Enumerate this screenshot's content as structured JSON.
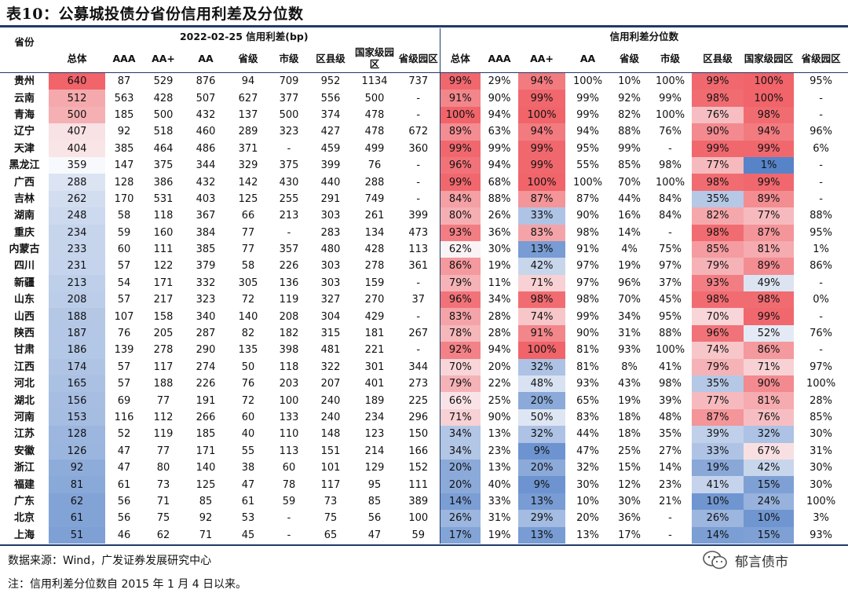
{
  "title": "表10：公募城投债分省份信用利差及分位数",
  "header": {
    "province_label": "省份",
    "group_spread": "2022-02-25 信用利差(bp)",
    "group_pct": "信用利差分位数",
    "cols": [
      "总体",
      "AAA",
      "AA+",
      "AA",
      "省级",
      "市级",
      "区县级",
      "国家级园区",
      "省级园区"
    ]
  },
  "rows": [
    {
      "p": "贵州",
      "s": [
        "640",
        "87",
        "529",
        "876",
        "94",
        "709",
        "952",
        "1134",
        "737"
      ],
      "q": [
        "99%",
        "29%",
        "94%",
        "100%",
        "10%",
        "100%",
        "99%",
        "100%",
        "95%"
      ]
    },
    {
      "p": "云南",
      "s": [
        "512",
        "563",
        "428",
        "507",
        "627",
        "377",
        "556",
        "500",
        "-"
      ],
      "q": [
        "91%",
        "90%",
        "99%",
        "99%",
        "92%",
        "99%",
        "98%",
        "100%",
        "-"
      ]
    },
    {
      "p": "青海",
      "s": [
        "500",
        "185",
        "500",
        "432",
        "137",
        "500",
        "374",
        "478",
        "-"
      ],
      "q": [
        "100%",
        "94%",
        "100%",
        "99%",
        "82%",
        "100%",
        "76%",
        "98%",
        "-"
      ]
    },
    {
      "p": "辽宁",
      "s": [
        "407",
        "92",
        "518",
        "460",
        "289",
        "323",
        "427",
        "478",
        "672"
      ],
      "q": [
        "89%",
        "63%",
        "94%",
        "94%",
        "88%",
        "76%",
        "90%",
        "94%",
        "96%"
      ]
    },
    {
      "p": "天津",
      "s": [
        "404",
        "385",
        "464",
        "486",
        "371",
        "-",
        "459",
        "499",
        "360"
      ],
      "q": [
        "99%",
        "99%",
        "99%",
        "95%",
        "99%",
        "-",
        "99%",
        "99%",
        "6%"
      ]
    },
    {
      "p": "黑龙江",
      "s": [
        "359",
        "147",
        "375",
        "344",
        "329",
        "375",
        "399",
        "76",
        "-"
      ],
      "q": [
        "96%",
        "94%",
        "99%",
        "55%",
        "85%",
        "98%",
        "77%",
        "1%",
        "-"
      ]
    },
    {
      "p": "广西",
      "s": [
        "288",
        "128",
        "386",
        "432",
        "142",
        "430",
        "440",
        "288",
        "-"
      ],
      "q": [
        "99%",
        "68%",
        "100%",
        "100%",
        "70%",
        "100%",
        "98%",
        "99%",
        "-"
      ]
    },
    {
      "p": "吉林",
      "s": [
        "262",
        "170",
        "531",
        "403",
        "125",
        "255",
        "291",
        "749",
        "-"
      ],
      "q": [
        "84%",
        "88%",
        "87%",
        "87%",
        "44%",
        "84%",
        "35%",
        "89%",
        "-"
      ]
    },
    {
      "p": "湖南",
      "s": [
        "248",
        "58",
        "118",
        "367",
        "66",
        "213",
        "303",
        "261",
        "399"
      ],
      "q": [
        "80%",
        "26%",
        "33%",
        "90%",
        "16%",
        "84%",
        "82%",
        "77%",
        "88%"
      ]
    },
    {
      "p": "重庆",
      "s": [
        "234",
        "59",
        "160",
        "384",
        "77",
        "-",
        "283",
        "134",
        "473"
      ],
      "q": [
        "93%",
        "36%",
        "83%",
        "98%",
        "14%",
        "-",
        "98%",
        "87%",
        "95%"
      ]
    },
    {
      "p": "内蒙古",
      "s": [
        "233",
        "60",
        "111",
        "385",
        "77",
        "357",
        "480",
        "428",
        "113"
      ],
      "q": [
        "62%",
        "30%",
        "13%",
        "91%",
        "4%",
        "75%",
        "85%",
        "81%",
        "1%"
      ]
    },
    {
      "p": "四川",
      "s": [
        "231",
        "57",
        "122",
        "379",
        "58",
        "226",
        "303",
        "278",
        "361"
      ],
      "q": [
        "86%",
        "19%",
        "42%",
        "97%",
        "19%",
        "97%",
        "79%",
        "89%",
        "86%"
      ]
    },
    {
      "p": "新疆",
      "s": [
        "213",
        "54",
        "171",
        "332",
        "305",
        "136",
        "303",
        "159",
        "-"
      ],
      "q": [
        "79%",
        "11%",
        "71%",
        "97%",
        "96%",
        "37%",
        "93%",
        "49%",
        "-"
      ]
    },
    {
      "p": "山东",
      "s": [
        "208",
        "57",
        "217",
        "323",
        "72",
        "119",
        "327",
        "270",
        "37"
      ],
      "q": [
        "96%",
        "34%",
        "98%",
        "98%",
        "70%",
        "45%",
        "98%",
        "98%",
        "0%"
      ]
    },
    {
      "p": "山西",
      "s": [
        "188",
        "107",
        "158",
        "340",
        "140",
        "208",
        "304",
        "429",
        "-"
      ],
      "q": [
        "83%",
        "28%",
        "74%",
        "99%",
        "34%",
        "95%",
        "70%",
        "99%",
        "-"
      ]
    },
    {
      "p": "陕西",
      "s": [
        "187",
        "76",
        "205",
        "287",
        "82",
        "182",
        "315",
        "181",
        "267"
      ],
      "q": [
        "78%",
        "28%",
        "91%",
        "90%",
        "31%",
        "88%",
        "96%",
        "52%",
        "76%"
      ]
    },
    {
      "p": "甘肃",
      "s": [
        "186",
        "139",
        "278",
        "290",
        "135",
        "398",
        "481",
        "221",
        "-"
      ],
      "q": [
        "92%",
        "94%",
        "100%",
        "81%",
        "93%",
        "100%",
        "74%",
        "86%",
        "-"
      ]
    },
    {
      "p": "江西",
      "s": [
        "174",
        "57",
        "117",
        "274",
        "50",
        "118",
        "322",
        "301",
        "344"
      ],
      "q": [
        "70%",
        "20%",
        "32%",
        "81%",
        "8%",
        "41%",
        "79%",
        "71%",
        "97%"
      ]
    },
    {
      "p": "河北",
      "s": [
        "165",
        "57",
        "188",
        "226",
        "76",
        "203",
        "207",
        "401",
        "273"
      ],
      "q": [
        "79%",
        "22%",
        "48%",
        "93%",
        "43%",
        "98%",
        "35%",
        "90%",
        "100%"
      ]
    },
    {
      "p": "湖北",
      "s": [
        "156",
        "69",
        "77",
        "191",
        "72",
        "100",
        "240",
        "189",
        "225"
      ],
      "q": [
        "66%",
        "25%",
        "20%",
        "65%",
        "19%",
        "39%",
        "77%",
        "81%",
        "28%"
      ]
    },
    {
      "p": "河南",
      "s": [
        "153",
        "116",
        "112",
        "266",
        "60",
        "133",
        "240",
        "234",
        "296"
      ],
      "q": [
        "71%",
        "90%",
        "50%",
        "83%",
        "18%",
        "48%",
        "87%",
        "76%",
        "85%"
      ]
    },
    {
      "p": "江苏",
      "s": [
        "128",
        "52",
        "119",
        "185",
        "40",
        "110",
        "148",
        "123",
        "150"
      ],
      "q": [
        "34%",
        "13%",
        "32%",
        "44%",
        "18%",
        "35%",
        "39%",
        "32%",
        "30%"
      ]
    },
    {
      "p": "安徽",
      "s": [
        "126",
        "47",
        "77",
        "171",
        "55",
        "113",
        "151",
        "214",
        "166"
      ],
      "q": [
        "34%",
        "23%",
        "9%",
        "47%",
        "25%",
        "27%",
        "33%",
        "67%",
        "31%"
      ]
    },
    {
      "p": "浙江",
      "s": [
        "92",
        "47",
        "80",
        "140",
        "38",
        "60",
        "101",
        "129",
        "152"
      ],
      "q": [
        "20%",
        "13%",
        "20%",
        "32%",
        "15%",
        "14%",
        "19%",
        "42%",
        "30%"
      ]
    },
    {
      "p": "福建",
      "s": [
        "81",
        "61",
        "73",
        "125",
        "47",
        "78",
        "117",
        "95",
        "111"
      ],
      "q": [
        "20%",
        "40%",
        "9%",
        "30%",
        "12%",
        "23%",
        "41%",
        "15%",
        "30%"
      ]
    },
    {
      "p": "广东",
      "s": [
        "62",
        "56",
        "71",
        "85",
        "61",
        "59",
        "73",
        "85",
        "389"
      ],
      "q": [
        "14%",
        "33%",
        "13%",
        "10%",
        "30%",
        "21%",
        "10%",
        "24%",
        "100%"
      ]
    },
    {
      "p": "北京",
      "s": [
        "61",
        "56",
        "75",
        "92",
        "53",
        "-",
        "75",
        "56",
        "100"
      ],
      "q": [
        "26%",
        "31%",
        "29%",
        "20%",
        "36%",
        "-",
        "26%",
        "10%",
        "3%"
      ]
    },
    {
      "p": "上海",
      "s": [
        "51",
        "46",
        "62",
        "71",
        "45",
        "-",
        "65",
        "47",
        "59"
      ],
      "q": [
        "17%",
        "19%",
        "13%",
        "13%",
        "17%",
        "-",
        "14%",
        "15%",
        "93%"
      ]
    }
  ],
  "source": "数据来源：Wind，广发证券发展研究中心",
  "note": "注：信用利差分位数自 2015 年 1 月 4 日以来。",
  "brand": "郁言债市",
  "brand_icon": "wechat-icon",
  "colors": {
    "accent": "#1f3b66",
    "high": "#f0646a",
    "low": "#5482c8"
  }
}
